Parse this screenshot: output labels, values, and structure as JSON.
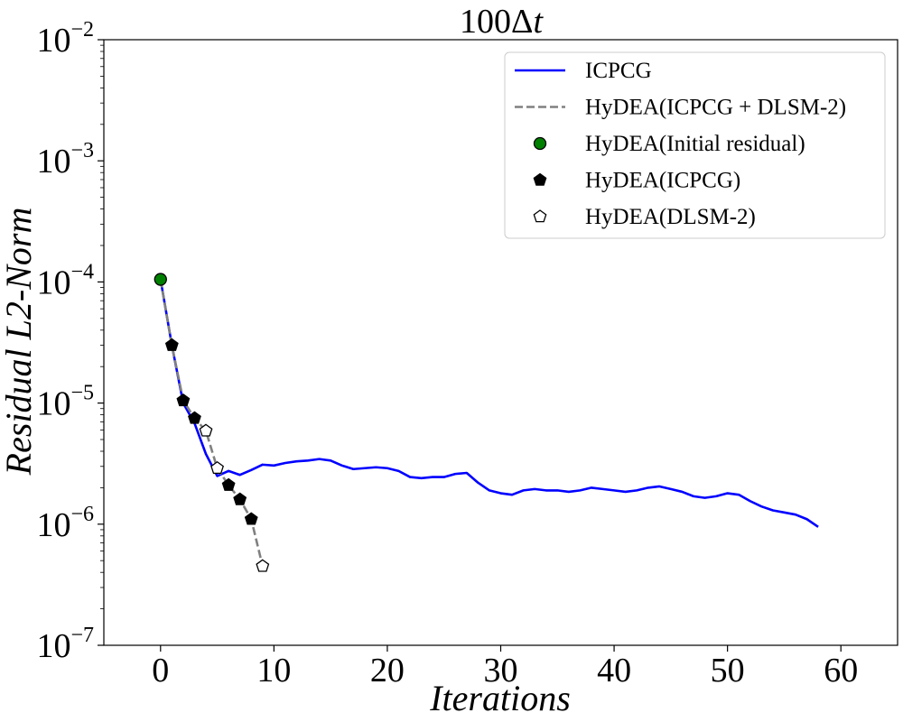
{
  "chart_data": {
    "type": "line",
    "title": "100Δ",
    "title_italic_suffix": "t",
    "xlabel": "Iterations",
    "ylabel": "Residual L2-Norm",
    "xlim": [
      -5,
      65
    ],
    "ylim": [
      1e-07,
      0.01
    ],
    "yscale": "log",
    "grid": false,
    "legend_position": "top-right",
    "xticks": [
      0,
      10,
      20,
      30,
      40,
      50,
      60
    ],
    "xtick_labels": [
      "0",
      "10",
      "20",
      "30",
      "40",
      "50",
      "60"
    ],
    "yticks": [
      1e-07,
      1e-06,
      1e-05,
      0.0001,
      0.001,
      0.01
    ],
    "ytick_bases": [
      "10",
      "10",
      "10",
      "10",
      "10",
      "10"
    ],
    "ytick_exponents": [
      "−7",
      "−6",
      "−5",
      "−4",
      "−3",
      "−2"
    ],
    "series": [
      {
        "name": "ICPCG",
        "style": "solid-line",
        "color": "#0000ff",
        "x": [
          0,
          1,
          2,
          3,
          4,
          5,
          6,
          7,
          8,
          9,
          10,
          11,
          12,
          13,
          14,
          15,
          16,
          17,
          18,
          19,
          20,
          21,
          22,
          23,
          24,
          25,
          26,
          27,
          28,
          29,
          30,
          31,
          32,
          33,
          34,
          35,
          36,
          37,
          38,
          39,
          40,
          41,
          42,
          43,
          44,
          45,
          46,
          47,
          48,
          49,
          50,
          51,
          52,
          53,
          54,
          55,
          56,
          57,
          58
        ],
        "y": [
          0.000105,
          3e-05,
          1e-05,
          6.8e-06,
          3.8e-06,
          2.5e-06,
          2.75e-06,
          2.55e-06,
          2.8e-06,
          3.1e-06,
          3.05e-06,
          3.2e-06,
          3.3e-06,
          3.35e-06,
          3.45e-06,
          3.35e-06,
          3.05e-06,
          2.85e-06,
          2.9e-06,
          2.95e-06,
          2.9e-06,
          2.75e-06,
          2.45e-06,
          2.4e-06,
          2.45e-06,
          2.45e-06,
          2.6e-06,
          2.65e-06,
          2.2e-06,
          1.9e-06,
          1.8e-06,
          1.75e-06,
          1.9e-06,
          1.95e-06,
          1.9e-06,
          1.9e-06,
          1.85e-06,
          1.9e-06,
          2e-06,
          1.95e-06,
          1.9e-06,
          1.85e-06,
          1.9e-06,
          2e-06,
          2.05e-06,
          1.95e-06,
          1.85e-06,
          1.7e-06,
          1.65e-06,
          1.7e-06,
          1.8e-06,
          1.75e-06,
          1.55e-06,
          1.4e-06,
          1.3e-06,
          1.25e-06,
          1.2e-06,
          1.1e-06,
          9.5e-07
        ]
      },
      {
        "name": "HyDEA(ICPCG + DLSM-2)",
        "style": "dashed-line",
        "color": "#808080",
        "x": [
          0,
          1,
          2,
          3,
          4,
          5,
          6,
          7,
          8,
          9
        ],
        "y": [
          0.000105,
          3e-05,
          1.05e-05,
          7.5e-06,
          5.9e-06,
          2.9e-06,
          2.1e-06,
          1.6e-06,
          1.1e-06,
          4.5e-07
        ]
      },
      {
        "name": "HyDEA(Initial residual)",
        "style": "circle-marker",
        "color": "#008000",
        "x": [
          0
        ],
        "y": [
          0.000105
        ]
      },
      {
        "name": "HyDEA(ICPCG)",
        "style": "filled-pentagon-marker",
        "color": "#000000",
        "x": [
          1,
          2,
          3,
          6,
          7,
          8
        ],
        "y": [
          3e-05,
          1.05e-05,
          7.5e-06,
          2.1e-06,
          1.6e-06,
          1.1e-06
        ]
      },
      {
        "name": "HyDEA(DLSM-2)",
        "style": "open-pentagon-marker",
        "color": "#ffffff",
        "x": [
          4,
          5,
          9
        ],
        "y": [
          5.9e-06,
          2.9e-06,
          4.5e-07
        ]
      }
    ]
  }
}
